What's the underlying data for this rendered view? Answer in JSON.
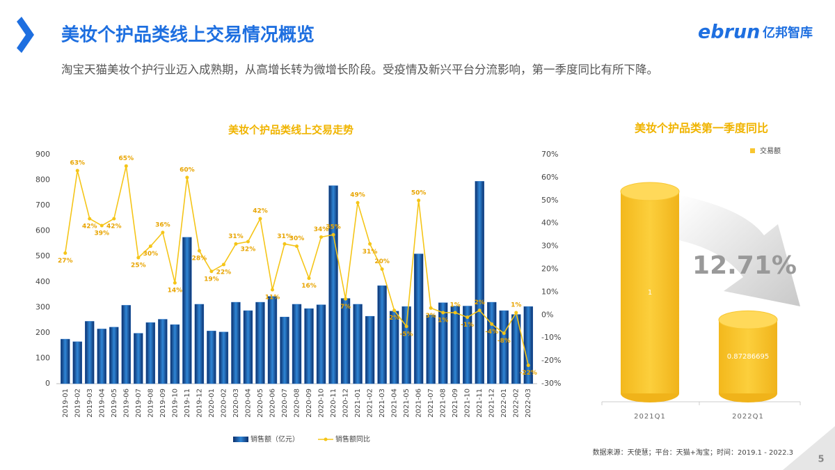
{
  "header": {
    "title": "美妆个护品类线上交易情况概览",
    "subtitle": "淘宝天猫美妆个护行业迈入成熟期，从高增长转为微增长阶段。受疫情及新兴平台分流影响，第一季度同比有所下降。",
    "logo_en": "ebrun",
    "logo_cn": "亿邦智库"
  },
  "chart_data": [
    {
      "type": "bar",
      "title": "美妆个护品类线上交易走势",
      "categories": [
        "2019-01",
        "2019-02",
        "2019-03",
        "2019-04",
        "2019-05",
        "2019-06",
        "2019-07",
        "2019-08",
        "2019-09",
        "2019-10",
        "2019-11",
        "2019-12",
        "2020-01",
        "2020-02",
        "2020-03",
        "2020-04",
        "2020-05",
        "2020-06",
        "2020-07",
        "2020-08",
        "2020-09",
        "2020-10",
        "2020-11",
        "2020-12",
        "2021-01",
        "2021-02",
        "2021-03",
        "2021-04",
        "2021-05",
        "2021-06",
        "2021-07",
        "2021-08",
        "2021-09",
        "2021-10",
        "2021-11",
        "2021-12",
        "2022-01",
        "2022-02",
        "2022-03"
      ],
      "series": [
        {
          "name": "销售额（亿元）",
          "color": "#1f6cc4",
          "values": [
            175,
            165,
            245,
            215,
            222,
            308,
            198,
            240,
            253,
            232,
            575,
            312,
            207,
            203,
            320,
            287,
            320,
            343,
            262,
            312,
            295,
            310,
            778,
            335,
            312,
            265,
            385,
            285,
            303,
            510,
            270,
            318,
            305,
            305,
            795,
            320,
            287,
            272,
            303
          ]
        },
        {
          "name": "销售额同比",
          "type": "line",
          "axis": "y2",
          "color": "#f5c518",
          "values": [
            27,
            63,
            42,
            39,
            42,
            65,
            25,
            30,
            36,
            14,
            60,
            28,
            19,
            22,
            31,
            32,
            42,
            11,
            31,
            30,
            16,
            34,
            35,
            7,
            49,
            31,
            20,
            2,
            -5,
            50,
            3,
            1,
            1,
            -1,
            2,
            -4,
            -8,
            1,
            -22
          ],
          "value_labels": [
            "27%",
            "63%",
            "42%",
            "39%",
            "42%",
            "65%",
            "25%",
            "30%",
            "36%",
            "14%",
            "60%",
            "28%",
            "19%",
            "22%",
            "31%",
            "32%",
            "42%",
            "11%",
            "31%",
            "30%",
            "16%",
            "34%",
            "35%",
            "7%",
            "49%",
            "31%",
            "20%",
            "2%",
            "-5%",
            "50%",
            "3%",
            "1%",
            "1%",
            "-1%",
            "2%",
            "-4%",
            "-8%",
            "1%",
            "-22%"
          ]
        }
      ],
      "ylim": [
        0,
        900
      ],
      "yticks": [
        0,
        100,
        200,
        300,
        400,
        500,
        600,
        700,
        800,
        900
      ],
      "y2lim": [
        -30,
        70
      ],
      "y2ticks": [
        {
          "value": -30,
          "label": "-30%"
        },
        {
          "value": -20,
          "label": "-20%"
        },
        {
          "value": -10,
          "label": "-10%"
        },
        {
          "value": 0,
          "label": "0%"
        },
        {
          "value": 10,
          "label": "10%"
        },
        {
          "value": 20,
          "label": "20%"
        },
        {
          "value": 30,
          "label": "30%"
        },
        {
          "value": 40,
          "label": "40%"
        },
        {
          "value": 50,
          "label": "50%"
        },
        {
          "value": 60,
          "label": "60%"
        },
        {
          "value": 70,
          "label": "70%"
        }
      ],
      "legend": "bottom"
    },
    {
      "type": "cylinder",
      "title": "美妆个护品类第一季度同比",
      "categories": [
        "2021Q1",
        "2022Q1"
      ],
      "series": [
        {
          "name": "交易额",
          "color": "#f8c630",
          "values": [
            1,
            0.87286695
          ]
        }
      ],
      "ylim": [
        0.8,
        1
      ],
      "annotation": "12.71%",
      "legend": "top-right"
    }
  ],
  "footer": {
    "source": "数据来源：天使慧；平台：天猫+淘宝；时间：2019.1 - 2022.3",
    "page": "5"
  }
}
